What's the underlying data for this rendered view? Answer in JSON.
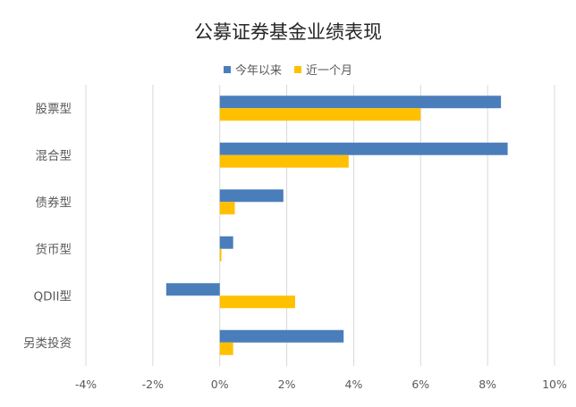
{
  "chart_data": {
    "type": "bar",
    "orientation": "horizontal",
    "title": "公募证券基金业绩表现",
    "categories": [
      "股票型",
      "混合型",
      "债券型",
      "货币型",
      "QDII型",
      "另类投资"
    ],
    "series": [
      {
        "name": "今年以来",
        "color": "#4a7ebb",
        "values": [
          8.4,
          8.6,
          1.9,
          0.4,
          -1.6,
          3.7
        ]
      },
      {
        "name": "近一个月",
        "color": "#ffc000",
        "values": [
          6.0,
          3.85,
          0.45,
          0.05,
          2.25,
          0.4
        ]
      }
    ],
    "xlim": [
      -4,
      10
    ],
    "xticks": [
      "-4%",
      "-2%",
      "0%",
      "2%",
      "4%",
      "6%",
      "8%",
      "10%"
    ],
    "xlabel": "",
    "ylabel": "",
    "grid": "vertical",
    "legend_position": "top"
  }
}
